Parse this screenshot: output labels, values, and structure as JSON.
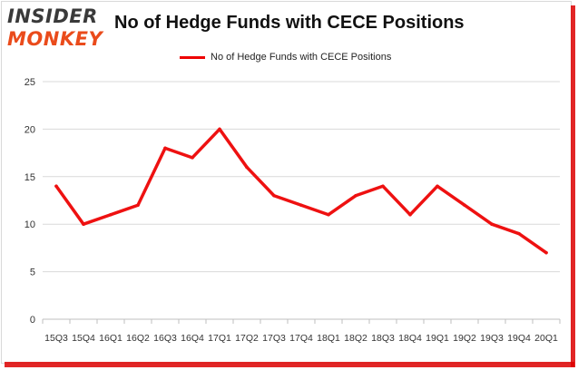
{
  "logo": {
    "line1": "INSIDER",
    "line2": "MONKEY"
  },
  "chart_data": {
    "type": "line",
    "title": "No of Hedge Funds with CECE Positions",
    "xlabel": "",
    "ylabel": "",
    "categories": [
      "15Q3",
      "15Q4",
      "16Q1",
      "16Q2",
      "16Q3",
      "16Q4",
      "17Q1",
      "17Q2",
      "17Q3",
      "17Q4",
      "18Q1",
      "18Q2",
      "18Q3",
      "18Q4",
      "19Q1",
      "19Q2",
      "19Q3",
      "19Q4",
      "20Q1"
    ],
    "series": [
      {
        "name": "No of Hedge Funds with CECE Positions",
        "color": "#ee1111",
        "values": [
          14,
          10,
          11,
          12,
          18,
          17,
          20,
          16,
          13,
          12,
          11,
          13,
          14,
          11,
          14,
          12,
          10,
          9,
          7
        ]
      }
    ],
    "ylim": [
      0,
      25
    ],
    "yticks": [
      0,
      5,
      10,
      15,
      20,
      25
    ],
    "grid": true,
    "legend_position": "top-center"
  }
}
